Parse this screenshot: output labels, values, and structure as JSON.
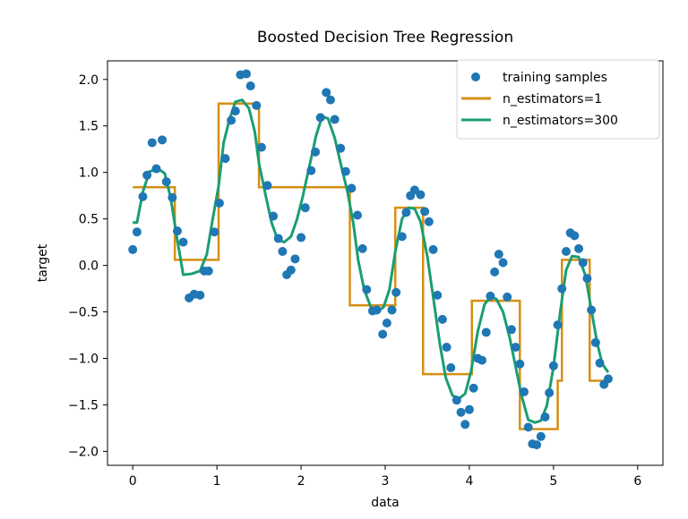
{
  "chart_data": {
    "type": "scatter+line",
    "title": "Boosted Decision Tree Regression",
    "xlabel": "data",
    "ylabel": "target",
    "xlim": [
      -0.3,
      6.3
    ],
    "ylim": [
      -2.15,
      2.2
    ],
    "xticks": [
      0,
      1,
      2,
      3,
      4,
      5,
      6
    ],
    "yticks": [
      -2.0,
      -1.5,
      -1.0,
      -0.5,
      0.0,
      0.5,
      1.0,
      1.5,
      2.0
    ],
    "ytick_labels": [
      "−2.0",
      "−1.5",
      "−1.0",
      "−0.5",
      "0.0",
      "0.5",
      "1.0",
      "1.5",
      "2.0"
    ],
    "legend_position": "top-right",
    "colors": {
      "samples": "#1f77b4",
      "n1": "#d58f16",
      "n300": "#1a9e72"
    },
    "series": [
      {
        "name": "training samples",
        "kind": "scatter",
        "points": [
          [
            0.0,
            0.17
          ],
          [
            0.05,
            0.36
          ],
          [
            0.12,
            0.74
          ],
          [
            0.17,
            0.97
          ],
          [
            0.23,
            1.32
          ],
          [
            0.28,
            1.04
          ],
          [
            0.35,
            1.35
          ],
          [
            0.4,
            0.9
          ],
          [
            0.47,
            0.73
          ],
          [
            0.53,
            0.37
          ],
          [
            0.6,
            0.25
          ],
          [
            0.67,
            -0.35
          ],
          [
            0.73,
            -0.31
          ],
          [
            0.8,
            -0.32
          ],
          [
            0.85,
            -0.06
          ],
          [
            0.9,
            -0.06
          ],
          [
            0.97,
            0.36
          ],
          [
            1.03,
            0.67
          ],
          [
            1.1,
            1.15
          ],
          [
            1.17,
            1.56
          ],
          [
            1.22,
            1.66
          ],
          [
            1.28,
            2.05
          ],
          [
            1.35,
            2.06
          ],
          [
            1.4,
            1.93
          ],
          [
            1.47,
            1.72
          ],
          [
            1.53,
            1.27
          ],
          [
            1.6,
            0.86
          ],
          [
            1.67,
            0.53
          ],
          [
            1.73,
            0.29
          ],
          [
            1.78,
            0.15
          ],
          [
            1.83,
            -0.1
          ],
          [
            1.88,
            -0.05
          ],
          [
            1.93,
            0.07
          ],
          [
            2.0,
            0.3
          ],
          [
            2.05,
            0.62
          ],
          [
            2.12,
            1.02
          ],
          [
            2.17,
            1.22
          ],
          [
            2.23,
            1.59
          ],
          [
            2.3,
            1.86
          ],
          [
            2.35,
            1.78
          ],
          [
            2.4,
            1.57
          ],
          [
            2.47,
            1.26
          ],
          [
            2.53,
            1.01
          ],
          [
            2.6,
            0.83
          ],
          [
            2.67,
            0.54
          ],
          [
            2.73,
            0.18
          ],
          [
            2.78,
            -0.26
          ],
          [
            2.85,
            -0.49
          ],
          [
            2.9,
            -0.48
          ],
          [
            2.97,
            -0.74
          ],
          [
            3.02,
            -0.62
          ],
          [
            3.08,
            -0.48
          ],
          [
            3.13,
            -0.29
          ],
          [
            3.2,
            0.31
          ],
          [
            3.25,
            0.57
          ],
          [
            3.3,
            0.75
          ],
          [
            3.35,
            0.81
          ],
          [
            3.42,
            0.76
          ],
          [
            3.47,
            0.58
          ],
          [
            3.52,
            0.47
          ],
          [
            3.57,
            0.17
          ],
          [
            3.62,
            -0.32
          ],
          [
            3.68,
            -0.58
          ],
          [
            3.73,
            -0.88
          ],
          [
            3.78,
            -1.1
          ],
          [
            3.85,
            -1.45
          ],
          [
            3.9,
            -1.58
          ],
          [
            3.95,
            -1.71
          ],
          [
            4.0,
            -1.55
          ],
          [
            4.05,
            -1.32
          ],
          [
            4.1,
            -1.0
          ],
          [
            4.15,
            -1.02
          ],
          [
            4.2,
            -0.72
          ],
          [
            4.25,
            -0.33
          ],
          [
            4.3,
            -0.07
          ],
          [
            4.35,
            0.12
          ],
          [
            4.4,
            0.03
          ],
          [
            4.45,
            -0.34
          ],
          [
            4.5,
            -0.69
          ],
          [
            4.55,
            -0.88
          ],
          [
            4.6,
            -1.06
          ],
          [
            4.65,
            -1.36
          ],
          [
            4.7,
            -1.74
          ],
          [
            4.75,
            -1.92
          ],
          [
            4.8,
            -1.93
          ],
          [
            4.85,
            -1.84
          ],
          [
            4.9,
            -1.63
          ],
          [
            4.95,
            -1.37
          ],
          [
            5.0,
            -1.08
          ],
          [
            5.05,
            -0.64
          ],
          [
            5.1,
            -0.25
          ],
          [
            5.15,
            0.15
          ],
          [
            5.2,
            0.35
          ],
          [
            5.25,
            0.32
          ],
          [
            5.3,
            0.18
          ],
          [
            5.35,
            0.03
          ],
          [
            5.4,
            -0.14
          ],
          [
            5.45,
            -0.48
          ],
          [
            5.5,
            -0.83
          ],
          [
            5.55,
            -1.05
          ],
          [
            5.6,
            -1.28
          ],
          [
            5.65,
            -1.22
          ]
        ]
      },
      {
        "name": "n_estimators=1",
        "kind": "step",
        "points": [
          [
            0.0,
            0.84
          ],
          [
            0.5,
            0.84
          ],
          [
            0.5,
            0.06
          ],
          [
            1.02,
            0.06
          ],
          [
            1.02,
            1.74
          ],
          [
            1.5,
            1.74
          ],
          [
            1.5,
            0.84
          ],
          [
            2.58,
            0.84
          ],
          [
            2.58,
            -0.43
          ],
          [
            3.12,
            -0.43
          ],
          [
            3.12,
            0.62
          ],
          [
            3.45,
            0.62
          ],
          [
            3.45,
            -1.17
          ],
          [
            4.03,
            -1.17
          ],
          [
            4.03,
            -0.38
          ],
          [
            4.6,
            -0.38
          ],
          [
            4.6,
            -1.76
          ],
          [
            5.05,
            -1.76
          ],
          [
            5.05,
            -1.24
          ],
          [
            5.1,
            -1.24
          ],
          [
            5.1,
            0.06
          ],
          [
            5.43,
            0.06
          ],
          [
            5.43,
            -1.24
          ],
          [
            5.65,
            -1.24
          ]
        ]
      },
      {
        "name": "n_estimators=300",
        "kind": "line",
        "points": [
          [
            0.0,
            0.46
          ],
          [
            0.05,
            0.46
          ],
          [
            0.12,
            0.79
          ],
          [
            0.2,
            1.01
          ],
          [
            0.3,
            1.04
          ],
          [
            0.38,
            0.99
          ],
          [
            0.45,
            0.73
          ],
          [
            0.53,
            0.27
          ],
          [
            0.6,
            -0.1
          ],
          [
            0.7,
            -0.09
          ],
          [
            0.8,
            -0.06
          ],
          [
            0.88,
            0.12
          ],
          [
            0.95,
            0.5
          ],
          [
            1.02,
            0.85
          ],
          [
            1.08,
            1.32
          ],
          [
            1.15,
            1.57
          ],
          [
            1.22,
            1.76
          ],
          [
            1.3,
            1.78
          ],
          [
            1.38,
            1.69
          ],
          [
            1.45,
            1.44
          ],
          [
            1.5,
            1.1
          ],
          [
            1.58,
            0.75
          ],
          [
            1.65,
            0.46
          ],
          [
            1.72,
            0.28
          ],
          [
            1.8,
            0.25
          ],
          [
            1.88,
            0.31
          ],
          [
            1.95,
            0.49
          ],
          [
            2.02,
            0.74
          ],
          [
            2.1,
            1.07
          ],
          [
            2.18,
            1.4
          ],
          [
            2.25,
            1.6
          ],
          [
            2.32,
            1.58
          ],
          [
            2.4,
            1.37
          ],
          [
            2.48,
            1.06
          ],
          [
            2.55,
            0.8
          ],
          [
            2.62,
            0.46
          ],
          [
            2.68,
            0.05
          ],
          [
            2.75,
            -0.26
          ],
          [
            2.83,
            -0.45
          ],
          [
            2.9,
            -0.5
          ],
          [
            2.98,
            -0.45
          ],
          [
            3.05,
            -0.26
          ],
          [
            3.12,
            0.15
          ],
          [
            3.2,
            0.5
          ],
          [
            3.28,
            0.62
          ],
          [
            3.35,
            0.61
          ],
          [
            3.42,
            0.47
          ],
          [
            3.5,
            0.1
          ],
          [
            3.58,
            -0.4
          ],
          [
            3.65,
            -0.85
          ],
          [
            3.72,
            -1.21
          ],
          [
            3.8,
            -1.4
          ],
          [
            3.88,
            -1.43
          ],
          [
            3.95,
            -1.38
          ],
          [
            4.02,
            -1.14
          ],
          [
            4.1,
            -0.71
          ],
          [
            4.18,
            -0.42
          ],
          [
            4.25,
            -0.34
          ],
          [
            4.32,
            -0.36
          ],
          [
            4.4,
            -0.5
          ],
          [
            4.48,
            -0.78
          ],
          [
            4.55,
            -1.09
          ],
          [
            4.62,
            -1.4
          ],
          [
            4.7,
            -1.66
          ],
          [
            4.78,
            -1.69
          ],
          [
            4.85,
            -1.67
          ],
          [
            4.92,
            -1.51
          ],
          [
            5.0,
            -1.09
          ],
          [
            5.08,
            -0.5
          ],
          [
            5.15,
            -0.05
          ],
          [
            5.22,
            0.1
          ],
          [
            5.3,
            0.09
          ],
          [
            5.38,
            -0.11
          ],
          [
            5.45,
            -0.48
          ],
          [
            5.52,
            -0.84
          ],
          [
            5.58,
            -1.06
          ],
          [
            5.65,
            -1.15
          ]
        ]
      }
    ]
  }
}
